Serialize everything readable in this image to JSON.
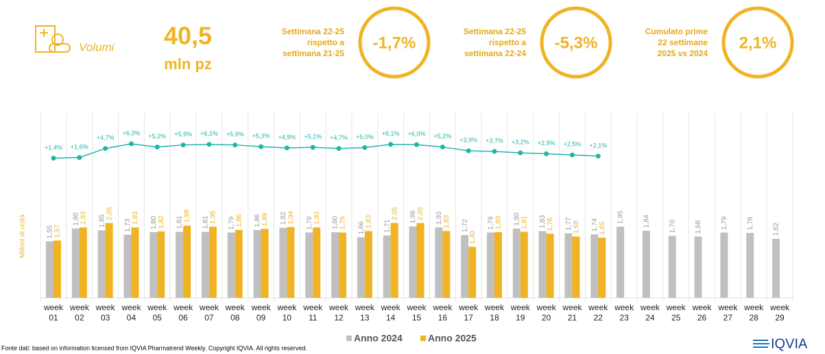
{
  "header": {
    "metric": "Volumi",
    "total": "40,5",
    "unit": "mln pz",
    "kpis": [
      {
        "label": [
          "Settimana 22-25",
          "rispetto a",
          "settimana 21-25"
        ],
        "value": "-1,7%"
      },
      {
        "label": [
          "Settimana 22-25",
          "rispetto a",
          "settimana 22-24"
        ],
        "value": "-5,3%"
      },
      {
        "label": [
          "Cumulato prime",
          "22 settimane",
          "2025 vs 2024"
        ],
        "value": "2,1%"
      }
    ]
  },
  "chart_data": {
    "type": "bar",
    "y_label": "Milioni di unità",
    "categories": [
      "week 01",
      "week 02",
      "week 03",
      "week 04",
      "week 05",
      "week 06",
      "week 07",
      "week 08",
      "week 09",
      "week 10",
      "week 11",
      "week 12",
      "week 13",
      "week 14",
      "week 15",
      "week 16",
      "week 17",
      "week 18",
      "week 19",
      "week 20",
      "week 21",
      "week 22",
      "week 23",
      "week 24",
      "week 25",
      "week 26",
      "week 27",
      "week 28",
      "week 29"
    ],
    "series": [
      {
        "name": "Anno 2024",
        "color": "#c0c0c0",
        "values": [
          1.55,
          1.9,
          1.85,
          1.73,
          1.8,
          1.81,
          1.81,
          1.79,
          1.86,
          1.92,
          1.79,
          1.8,
          1.66,
          1.71,
          1.96,
          1.93,
          1.72,
          1.79,
          1.9,
          1.83,
          1.77,
          1.74,
          1.95,
          1.84,
          1.7,
          1.68,
          1.79,
          1.78,
          1.62
        ],
        "value_labels": [
          "1,55",
          "1,90",
          "1,85",
          "1,73",
          "1,80",
          "1,81",
          "1,81",
          "1,79",
          "1,86",
          "1,92",
          "1,79",
          "1,80",
          "1,66",
          "1,71",
          "1,96",
          "1,93",
          "1,72",
          "1,79",
          "1,90",
          "1,83",
          "1,77",
          "1,74",
          "1,95",
          "1,84",
          "1,70",
          "1,68",
          "1,79",
          "1,78",
          "1,62"
        ]
      },
      {
        "name": "Anno 2025",
        "color": "#f0b323",
        "values": [
          1.57,
          1.93,
          2.05,
          1.93,
          1.82,
          1.98,
          1.95,
          1.86,
          1.89,
          1.94,
          1.93,
          1.79,
          1.83,
          2.05,
          2.05,
          1.83,
          1.4,
          1.8,
          1.81,
          1.76,
          1.68,
          1.65,
          null,
          null,
          null,
          null,
          null,
          null,
          null
        ],
        "value_labels": [
          "1,57",
          "1,93",
          "2,05",
          "1,93",
          "1,82",
          "1,98",
          "1,95",
          "1,86",
          "1,89",
          "1,94",
          "1,93",
          "1,79",
          "1,83",
          "2,05",
          "2,05",
          "1,83",
          "1,40",
          "1,80",
          "1,81",
          "1,76",
          "1,68",
          "1,65",
          null,
          null,
          null,
          null,
          null,
          null,
          null
        ]
      }
    ],
    "growth": {
      "color": "#1fb5a8",
      "values": [
        1.4,
        1.6,
        4.7,
        6.3,
        5.2,
        5.9,
        6.1,
        5.9,
        5.3,
        4.9,
        5.1,
        4.7,
        5.0,
        6.1,
        6.0,
        5.2,
        3.9,
        3.7,
        3.2,
        2.9,
        2.5,
        2.1
      ],
      "value_labels": [
        "+1,4%",
        "+1,6%",
        "+4,7%",
        "+6,3%",
        "+5,2%",
        "+5,9%",
        "+6,1%",
        "+5,9%",
        "+5,3%",
        "+4,9%",
        "+5,1%",
        "+4,7%",
        "+5,0%",
        "+6,1%",
        "+6,0%",
        "+5,2%",
        "+3,9%",
        "+3,7%",
        "+3,2%",
        "+2,9%",
        "+2,5%",
        "+2,1%"
      ]
    }
  },
  "footer": {
    "source": "Fonte dati: based on information licensed from IQVIA Pharmatrend Weekly. Copyright IQVIA. All rights reserved.",
    "logo": "IQVIA"
  }
}
